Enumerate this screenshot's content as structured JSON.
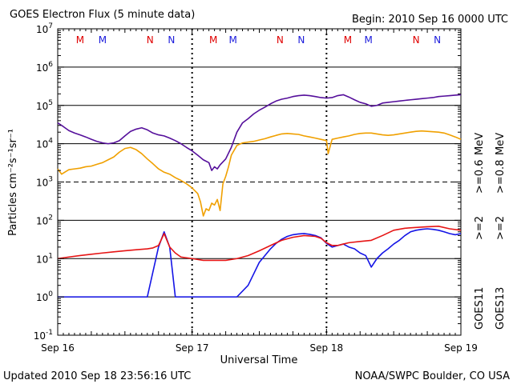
{
  "chart_data": {
    "type": "line",
    "title": "GOES Electron Flux (5 minute data)",
    "begin_label": "Begin: 2010 Sep 16 0000 UTC",
    "xlabel": "Universal Time",
    "ylabel": "Particles cm⁻²s⁻¹sr⁻¹",
    "y_scale": "log",
    "ylim": [
      0.1,
      10000000
    ],
    "y_ticks": [
      {
        "base": "10",
        "exp": "7"
      },
      {
        "base": "10",
        "exp": "6"
      },
      {
        "base": "10",
        "exp": "5"
      },
      {
        "base": "10",
        "exp": "4"
      },
      {
        "base": "10",
        "exp": "3"
      },
      {
        "base": "10",
        "exp": "2"
      },
      {
        "base": "10",
        "exp": "1"
      },
      {
        "base": "10",
        "exp": "0"
      },
      {
        "base": "10",
        "exp": "-1"
      }
    ],
    "x_range_hours": [
      0,
      72
    ],
    "x_ticks": [
      "Sep 16",
      "Sep 17",
      "Sep 18",
      "Sep 19"
    ],
    "markers": [
      {
        "label": "M",
        "hour": 4,
        "color": "#e00000"
      },
      {
        "label": "M",
        "hour": 8,
        "color": "#1a1adc"
      },
      {
        "label": "N",
        "hour": 16.5,
        "color": "#e00000"
      },
      {
        "label": "N",
        "hour": 20.3,
        "color": "#1a1adc"
      },
      {
        "label": "M",
        "hour": 27.8,
        "color": "#e00000"
      },
      {
        "label": "M",
        "hour": 31.3,
        "color": "#1a1adc"
      },
      {
        "label": "N",
        "hour": 39.7,
        "color": "#e00000"
      },
      {
        "label": "N",
        "hour": 43.5,
        "color": "#1a1adc"
      },
      {
        "label": "M",
        "hour": 51.8,
        "color": "#e00000"
      },
      {
        "label": "M",
        "hour": 55.5,
        "color": "#1a1adc"
      },
      {
        "label": "N",
        "hour": 64,
        "color": "#e00000"
      },
      {
        "label": "N",
        "hour": 67.8,
        "color": "#1a1adc"
      }
    ],
    "threshold_line": 1000,
    "series": [
      {
        "name": ">=0.6 MeV",
        "satellite": "GOES11",
        "color": "#550f9b",
        "x": [
          0,
          1,
          2,
          3,
          4,
          5,
          6,
          7,
          8,
          9,
          10,
          11,
          12,
          13,
          14,
          15,
          16,
          17,
          18,
          19,
          20,
          21,
          22,
          23,
          24,
          25,
          26,
          27,
          27.5,
          28,
          28.5,
          29,
          30,
          31,
          32,
          33,
          34,
          35,
          36,
          37,
          38,
          39,
          40,
          41,
          42,
          43,
          44,
          45,
          46,
          47,
          48,
          49,
          50,
          51,
          52,
          53,
          54,
          55,
          56,
          57,
          58,
          59,
          60,
          61,
          62,
          63,
          64,
          65,
          66,
          67,
          68,
          69,
          70,
          71,
          72
        ],
        "values": [
          35000,
          28000,
          22000,
          19000,
          17000,
          15000,
          13000,
          11500,
          10500,
          10000,
          10500,
          12000,
          16000,
          21000,
          24000,
          26000,
          23000,
          19000,
          17000,
          16000,
          14000,
          12000,
          10000,
          8000,
          6500,
          5000,
          3800,
          3200,
          2000,
          2500,
          2200,
          2800,
          4000,
          8000,
          20000,
          35000,
          45000,
          60000,
          75000,
          90000,
          110000,
          130000,
          145000,
          155000,
          170000,
          180000,
          185000,
          180000,
          170000,
          160000,
          155000,
          160000,
          180000,
          190000,
          165000,
          140000,
          120000,
          110000,
          95000,
          100000,
          115000,
          120000,
          125000,
          130000,
          135000,
          140000,
          145000,
          150000,
          155000,
          160000,
          170000,
          175000,
          180000,
          185000,
          190000
        ]
      },
      {
        "name": ">=0.8 MeV",
        "satellite": "GOES13",
        "color": "#f0a000",
        "x": [
          0,
          0.7,
          1.5,
          2,
          3,
          4,
          5,
          6,
          7,
          8,
          9,
          10,
          11,
          12,
          13,
          14,
          15,
          16,
          17,
          18,
          19,
          20,
          21,
          22,
          23,
          24,
          25,
          25.5,
          26,
          26.5,
          27,
          27.5,
          28,
          28.5,
          29,
          29.5,
          30,
          30.5,
          31,
          32,
          33,
          34,
          35,
          36,
          37,
          38,
          39,
          40,
          41,
          42,
          43,
          44,
          45,
          46,
          47,
          48,
          48.3,
          48.7,
          49,
          50,
          51,
          52,
          53,
          54,
          55,
          56,
          57,
          58,
          59,
          60,
          61,
          62,
          63,
          64,
          65,
          66,
          67,
          68,
          69,
          70,
          71,
          72
        ],
        "values": [
          2200,
          1600,
          1900,
          2100,
          2200,
          2300,
          2500,
          2600,
          2900,
          3200,
          3800,
          4500,
          6000,
          7500,
          8000,
          7000,
          5500,
          4000,
          3000,
          2200,
          1800,
          1600,
          1300,
          1100,
          900,
          700,
          500,
          300,
          130,
          200,
          180,
          280,
          250,
          350,
          180,
          900,
          1400,
          2500,
          5000,
          9000,
          10500,
          11000,
          11500,
          12500,
          13500,
          15000,
          16500,
          18000,
          18500,
          18000,
          17500,
          16000,
          15000,
          14000,
          13000,
          12000,
          5500,
          9000,
          13000,
          14000,
          15000,
          16000,
          17500,
          18500,
          19000,
          19000,
          18000,
          17000,
          16500,
          17000,
          18000,
          19000,
          20000,
          21000,
          21500,
          21000,
          20500,
          20000,
          19000,
          17000,
          15000,
          13000
        ]
      },
      {
        "name": ">=2 MeV",
        "satellite": "GOES11",
        "color": "#1414e6",
        "x": [
          0,
          4,
          8,
          12,
          16,
          18,
          19,
          20,
          21,
          22,
          23,
          24,
          26,
          28,
          30,
          32,
          34,
          35,
          36,
          37,
          38,
          39,
          40,
          41,
          42,
          43,
          44,
          45,
          46,
          47,
          48,
          49,
          50,
          51,
          52,
          53,
          54,
          55,
          56,
          57,
          58,
          59,
          60,
          61,
          62,
          63,
          64,
          65,
          66,
          67,
          68,
          69,
          70,
          71,
          72
        ],
        "values": [
          1,
          1,
          1,
          1,
          1,
          20,
          50,
          20,
          1,
          1,
          1,
          1,
          1,
          1,
          1,
          1,
          2,
          4,
          8,
          12,
          18,
          25,
          32,
          38,
          42,
          44,
          45,
          43,
          40,
          35,
          25,
          20,
          22,
          24,
          20,
          18,
          14,
          12,
          6,
          10,
          14,
          18,
          24,
          30,
          40,
          50,
          55,
          58,
          60,
          58,
          55,
          50,
          45,
          42,
          45
        ]
      },
      {
        "name": ">=2 MeV",
        "satellite": "GOES13",
        "color": "#e61414",
        "x": [
          0,
          2,
          4,
          6,
          8,
          10,
          12,
          14,
          16,
          17,
          18,
          19,
          20,
          21,
          22,
          24,
          26,
          28,
          30,
          32,
          34,
          36,
          38,
          40,
          42,
          44,
          46,
          47,
          48,
          49,
          50,
          51,
          52,
          54,
          56,
          58,
          60,
          62,
          64,
          66,
          68,
          70,
          72
        ],
        "values": [
          10,
          11,
          12,
          13,
          14,
          15,
          16,
          17,
          18,
          19,
          22,
          45,
          20,
          14,
          11,
          10,
          9,
          9,
          9,
          10,
          12,
          16,
          22,
          30,
          36,
          40,
          38,
          34,
          26,
          22,
          22,
          24,
          26,
          28,
          30,
          40,
          55,
          62,
          65,
          68,
          70,
          60,
          55
        ]
      }
    ],
    "legend": {
      "group1_label": "GOES11",
      "group2_label": "GOES13",
      "g1_e2": ">=2",
      "g1_e06": ">=0.6",
      "g2_e2": ">=2",
      "g2_e08": ">=0.8",
      "unit": "MeV"
    }
  },
  "footer": {
    "updated": "Updated 2010 Sep 18 23:56:16 UTC",
    "source": "NOAA/SWPC Boulder, CO USA"
  }
}
